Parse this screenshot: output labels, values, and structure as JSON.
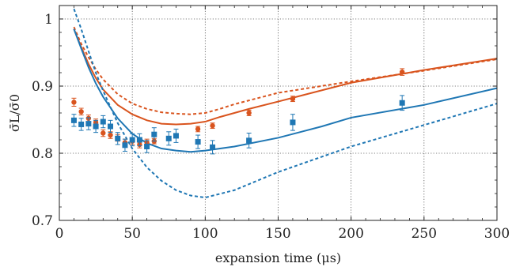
{
  "chart_data": {
    "type": "scatter",
    "xlabel": "expansion time (μs)",
    "ylabel": "σ̄L/σ̄0",
    "xlim": [
      0,
      300
    ],
    "ylim": [
      0.7,
      1.02
    ],
    "x_ticks": [
      0,
      50,
      100,
      150,
      200,
      250,
      300
    ],
    "x_tick_labels": [
      "0",
      "50",
      "100",
      "150",
      "200",
      "250",
      "300"
    ],
    "y_ticks": [
      0.7,
      0.8,
      0.9,
      1.0
    ],
    "y_tick_labels": [
      "0.7",
      "0.8",
      "0.9",
      "1"
    ],
    "grid": true,
    "colors": {
      "orange": "#d9541e",
      "blue": "#1f77b4",
      "grid": "#555555",
      "axis": "#222222"
    },
    "series": [
      {
        "kind": "points",
        "marker": "circle",
        "color": "#d9541e",
        "points": [
          {
            "x": 10,
            "y": 0.876,
            "err": 0.006
          },
          {
            "x": 15,
            "y": 0.862,
            "err": 0.005
          },
          {
            "x": 20,
            "y": 0.852,
            "err": 0.005
          },
          {
            "x": 25,
            "y": 0.846,
            "err": 0.005
          },
          {
            "x": 30,
            "y": 0.83,
            "err": 0.005
          },
          {
            "x": 35,
            "y": 0.827,
            "err": 0.005
          },
          {
            "x": 40,
            "y": 0.823,
            "err": 0.005
          },
          {
            "x": 45,
            "y": 0.816,
            "err": 0.005
          },
          {
            "x": 50,
            "y": 0.818,
            "err": 0.005
          },
          {
            "x": 55,
            "y": 0.813,
            "err": 0.005
          },
          {
            "x": 60,
            "y": 0.816,
            "err": 0.005
          },
          {
            "x": 65,
            "y": 0.818,
            "err": 0.004
          },
          {
            "x": 95,
            "y": 0.836,
            "err": 0.004
          },
          {
            "x": 105,
            "y": 0.841,
            "err": 0.004
          },
          {
            "x": 130,
            "y": 0.86,
            "err": 0.004
          },
          {
            "x": 160,
            "y": 0.881,
            "err": 0.004
          },
          {
            "x": 235,
            "y": 0.921,
            "err": 0.005
          }
        ]
      },
      {
        "kind": "points",
        "marker": "square",
        "color": "#1f77b4",
        "points": [
          {
            "x": 10,
            "y": 0.849,
            "err": 0.009
          },
          {
            "x": 15,
            "y": 0.843,
            "err": 0.009
          },
          {
            "x": 20,
            "y": 0.844,
            "err": 0.009
          },
          {
            "x": 25,
            "y": 0.84,
            "err": 0.009
          },
          {
            "x": 30,
            "y": 0.847,
            "err": 0.009
          },
          {
            "x": 35,
            "y": 0.84,
            "err": 0.009
          },
          {
            "x": 40,
            "y": 0.822,
            "err": 0.009
          },
          {
            "x": 45,
            "y": 0.812,
            "err": 0.009
          },
          {
            "x": 50,
            "y": 0.82,
            "err": 0.009
          },
          {
            "x": 55,
            "y": 0.82,
            "err": 0.009
          },
          {
            "x": 60,
            "y": 0.81,
            "err": 0.009
          },
          {
            "x": 65,
            "y": 0.828,
            "err": 0.01
          },
          {
            "x": 75,
            "y": 0.822,
            "err": 0.01
          },
          {
            "x": 80,
            "y": 0.826,
            "err": 0.01
          },
          {
            "x": 95,
            "y": 0.817,
            "err": 0.01
          },
          {
            "x": 105,
            "y": 0.809,
            "err": 0.01
          },
          {
            "x": 130,
            "y": 0.819,
            "err": 0.011
          },
          {
            "x": 160,
            "y": 0.846,
            "err": 0.012
          },
          {
            "x": 235,
            "y": 0.875,
            "err": 0.011
          }
        ]
      },
      {
        "kind": "line",
        "dash": false,
        "color": "#d9541e",
        "x": [
          10,
          15,
          20,
          25,
          30,
          40,
          50,
          60,
          70,
          80,
          90,
          100,
          110,
          120,
          130,
          150,
          200,
          250,
          300
        ],
        "y": [
          0.985,
          0.958,
          0.933,
          0.912,
          0.895,
          0.872,
          0.858,
          0.849,
          0.844,
          0.843,
          0.844,
          0.847,
          0.854,
          0.86,
          0.866,
          0.877,
          0.905,
          0.924,
          0.941
        ]
      },
      {
        "kind": "line",
        "dash": true,
        "color": "#d9541e",
        "x": [
          10,
          15,
          20,
          25,
          30,
          40,
          50,
          60,
          70,
          80,
          90,
          100,
          110,
          120,
          150,
          200,
          250,
          300
        ],
        "y": [
          0.988,
          0.963,
          0.943,
          0.925,
          0.91,
          0.888,
          0.874,
          0.866,
          0.861,
          0.859,
          0.858,
          0.86,
          0.866,
          0.873,
          0.89,
          0.907,
          0.923,
          0.94
        ]
      },
      {
        "kind": "line",
        "dash": false,
        "color": "#1f77b4",
        "x": [
          10,
          15,
          20,
          25,
          30,
          40,
          50,
          60,
          70,
          80,
          90,
          100,
          120,
          150,
          180,
          200,
          250,
          300
        ],
        "y": [
          0.985,
          0.956,
          0.928,
          0.904,
          0.884,
          0.852,
          0.829,
          0.815,
          0.807,
          0.804,
          0.802,
          0.804,
          0.81,
          0.823,
          0.84,
          0.853,
          0.872,
          0.897
        ]
      },
      {
        "kind": "line",
        "dash": true,
        "color": "#1f77b4",
        "x": [
          10,
          15,
          20,
          25,
          30,
          40,
          50,
          60,
          70,
          80,
          90,
          100,
          120,
          150,
          200,
          250,
          300
        ],
        "y": [
          1.015,
          0.985,
          0.952,
          0.92,
          0.893,
          0.845,
          0.807,
          0.779,
          0.759,
          0.745,
          0.737,
          0.734,
          0.745,
          0.772,
          0.81,
          0.842,
          0.874
        ]
      }
    ]
  }
}
